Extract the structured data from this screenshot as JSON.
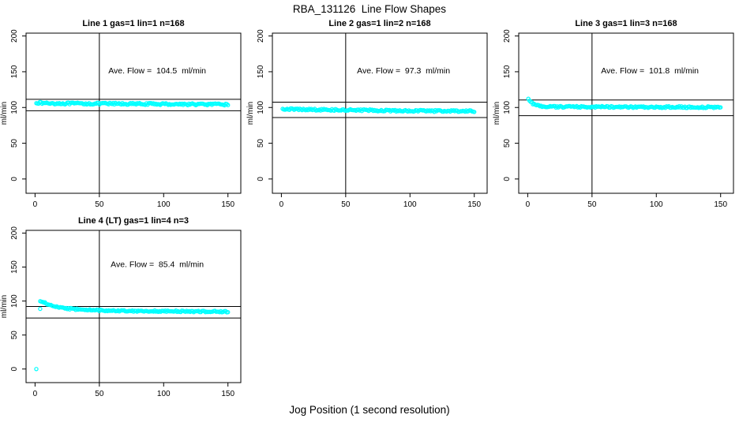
{
  "title": "RBA_131126  Line Flow Shapes",
  "xlabel": "Jog Position (1 second resolution)",
  "colors": {
    "marker": "#00FFFF",
    "axis": "#000000",
    "background": "#FFFFFF"
  },
  "chart_data": [
    {
      "type": "scatter",
      "title": "Line 1 gas=1 lin=1 n=168",
      "annotation": "Ave. Flow =  104.5  ml/min",
      "ave_flow_ml_min": 104.5,
      "n": 168,
      "ylabel": "ml/min",
      "xticks": [
        0,
        50,
        100,
        150
      ],
      "yticks": [
        0,
        50,
        100,
        150,
        200
      ],
      "xlim": [
        -7,
        160
      ],
      "ylim": [
        -20,
        204
      ],
      "vline_x": 50,
      "hlines": [
        111.5,
        95.5
      ],
      "x_start": 1,
      "x_end": 150,
      "points_n": 168,
      "trend": [
        [
          1,
          107
        ],
        [
          4,
          106.2
        ],
        [
          20,
          105.6
        ],
        [
          60,
          105.2
        ],
        [
          100,
          104.8
        ],
        [
          150,
          104.2
        ]
      ],
      "jitter": 1.3,
      "extra_points": [],
      "annotation_pos": [
        95,
        148
      ]
    },
    {
      "type": "scatter",
      "title": "Line 2 gas=1 lin=2 n=168",
      "annotation": "Ave. Flow =  97.3  ml/min",
      "ave_flow_ml_min": 97.3,
      "n": 168,
      "ylabel": "ml/min",
      "xticks": [
        0,
        50,
        100,
        150
      ],
      "yticks": [
        0,
        50,
        100,
        150,
        200
      ],
      "xlim": [
        -7,
        160
      ],
      "ylim": [
        -20,
        204
      ],
      "vline_x": 50,
      "hlines": [
        107.5,
        86
      ],
      "x_start": 1,
      "x_end": 150,
      "points_n": 168,
      "trend": [
        [
          1,
          98.2
        ],
        [
          10,
          97.4
        ],
        [
          40,
          96.6
        ],
        [
          80,
          95.8
        ],
        [
          120,
          95.2
        ],
        [
          150,
          94.8
        ]
      ],
      "jitter": 1.3,
      "extra_points": [],
      "annotation_pos": [
        95,
        148
      ]
    },
    {
      "type": "scatter",
      "title": "Line 3 gas=1 lin=3 n=168",
      "annotation": "Ave. Flow =  101.8  ml/min",
      "ave_flow_ml_min": 101.8,
      "n": 168,
      "ylabel": "ml/min",
      "xticks": [
        0,
        50,
        100,
        150
      ],
      "yticks": [
        0,
        50,
        100,
        150,
        200
      ],
      "xlim": [
        -7,
        160
      ],
      "ylim": [
        -20,
        204
      ],
      "vline_x": 50,
      "hlines": [
        110.5,
        88.5
      ],
      "x_start": 0.5,
      "x_end": 150,
      "points_n": 168,
      "trend": [
        [
          0.5,
          111.5
        ],
        [
          1.5,
          110
        ],
        [
          3,
          107
        ],
        [
          5,
          104
        ],
        [
          7,
          102.5
        ],
        [
          10,
          101.8
        ],
        [
          15,
          101.2
        ],
        [
          30,
          100.9
        ],
        [
          80,
          100.6
        ],
        [
          150,
          100.4
        ]
      ],
      "jitter": 1.2,
      "extra_points": [],
      "annotation_pos": [
        95,
        148
      ]
    },
    {
      "type": "scatter",
      "title": "Line 4 (LT) gas=1 lin=4 n=3",
      "annotation": "Ave. Flow =  85.4  ml/min",
      "ave_flow_ml_min": 85.4,
      "n": 3,
      "ylabel": "ml/min",
      "xticks": [
        0,
        50,
        100,
        150
      ],
      "yticks": [
        0,
        50,
        100,
        150,
        200
      ],
      "xlim": [
        -7,
        160
      ],
      "ylim": [
        -20,
        204
      ],
      "vline_x": 50,
      "hlines": [
        92,
        75
      ],
      "x_start": 4,
      "x_end": 150,
      "points_n": 160,
      "trend": [
        [
          4,
          100.5
        ],
        [
          6,
          98.5
        ],
        [
          9,
          96
        ],
        [
          13,
          93.5
        ],
        [
          18,
          91
        ],
        [
          25,
          89
        ],
        [
          35,
          87.5
        ],
        [
          50,
          86.3
        ],
        [
          70,
          85.6
        ],
        [
          100,
          85
        ],
        [
          150,
          84.4
        ]
      ],
      "jitter": 1.1,
      "extra_points": [
        [
          1,
          0
        ],
        [
          4,
          88.5
        ]
      ],
      "annotation_pos": [
        95,
        150
      ]
    }
  ]
}
